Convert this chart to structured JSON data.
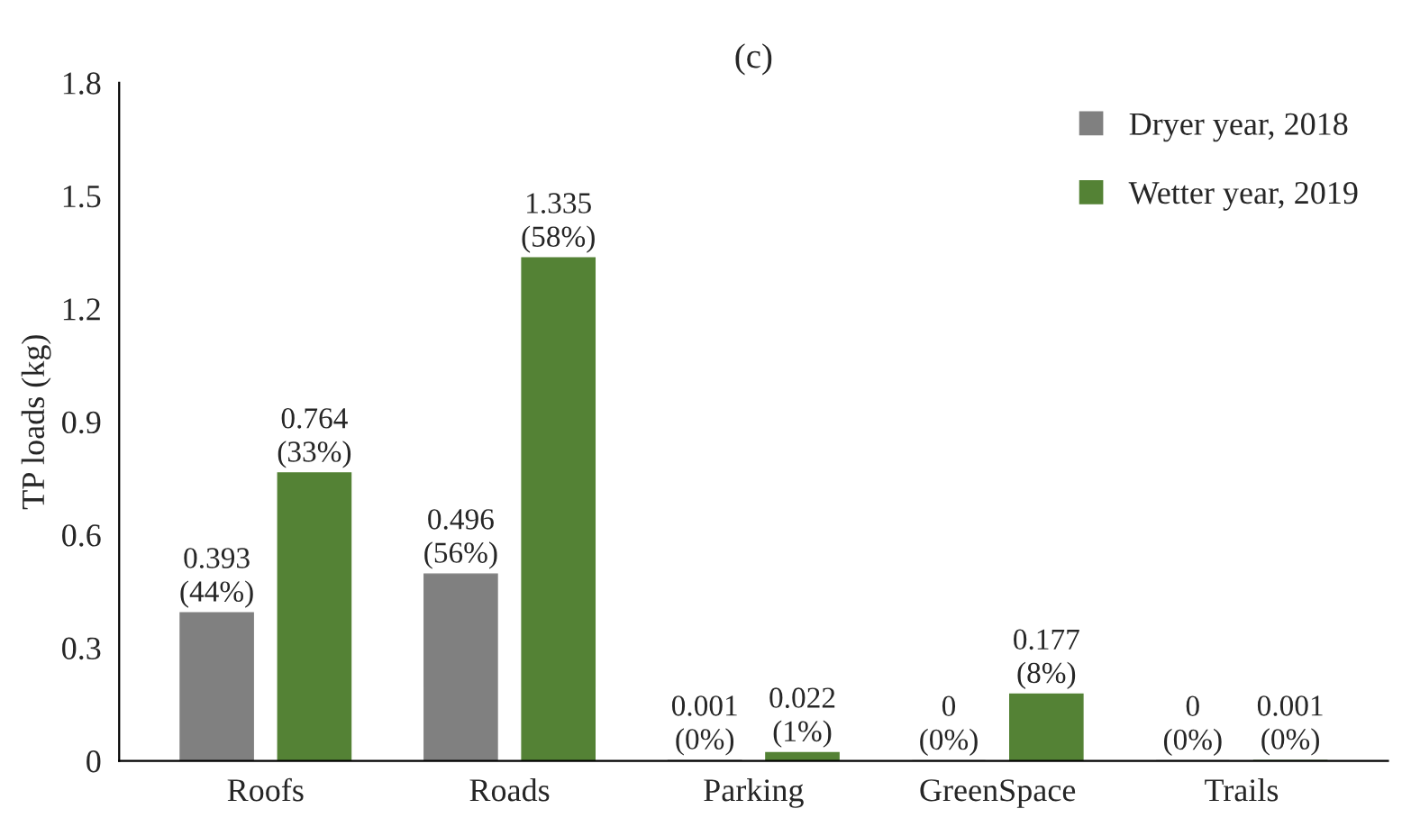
{
  "chart_data": {
    "type": "bar",
    "title": "(c)",
    "ylabel": "TP loads (kg)",
    "categories": [
      "Roofs",
      "Roads",
      "Parking",
      "GreenSpace",
      "Trails"
    ],
    "series": [
      {
        "name": "Dryer year, 2018",
        "color": "#808080",
        "values": [
          0.393,
          0.496,
          0.001,
          0,
          0
        ],
        "value_labels": [
          "0.393\n(44%)",
          "0.496\n(56%)",
          "0.001\n(0%)",
          "0\n(0%)",
          "0\n(0%)"
        ]
      },
      {
        "name": "Wetter year, 2019",
        "color": "#548235",
        "values": [
          0.764,
          1.335,
          0.022,
          0.177,
          0.001
        ],
        "value_labels": [
          "0.764\n(33%)",
          "1.335\n(58%)",
          "0.022\n(1%)",
          "0.177\n(8%)",
          "0.001\n(0%)"
        ]
      }
    ],
    "ylim": [
      0,
      1.8
    ],
    "yticks": [
      0,
      0.3,
      0.6,
      0.9,
      1.2,
      1.5,
      1.8
    ],
    "grid": false,
    "legend": "top right"
  }
}
